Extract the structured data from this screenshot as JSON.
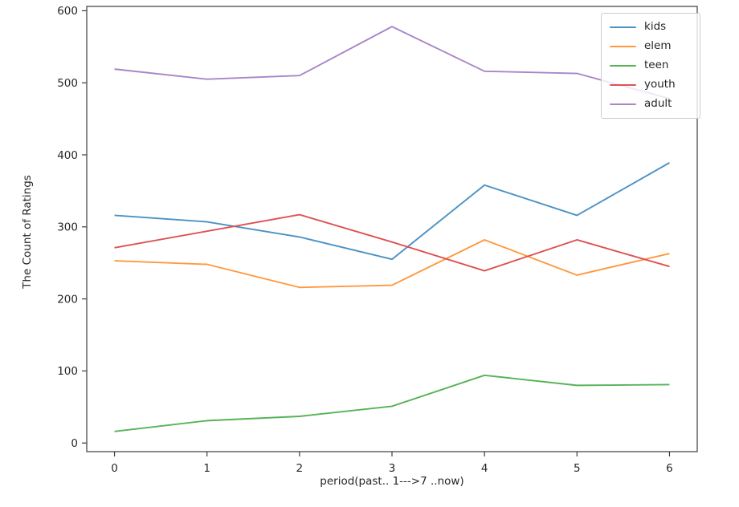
{
  "figure": {
    "background": "#ffffff",
    "text_color": "#262626",
    "axis_color": "#3c3c3c",
    "legend_border_color": "#cccccc"
  },
  "chart_data": {
    "type": "line",
    "title": "",
    "xlabel": "period(past.. 1--->7 ..now)",
    "ylabel": "The Count of Ratings",
    "x": [
      0,
      1,
      2,
      3,
      4,
      5,
      6
    ],
    "x_tick_labels": [
      "0",
      "1",
      "2",
      "3",
      "4",
      "5",
      "6"
    ],
    "y_ticks": [
      0,
      100,
      200,
      300,
      400,
      500,
      600
    ],
    "xlim": [
      -0.3,
      6.3
    ],
    "ylim": [
      -12,
      606
    ],
    "grid": false,
    "legend_position": "upper right",
    "legend_entries": [
      "kids",
      "elem",
      "teen",
      "youth",
      "adult"
    ],
    "series": [
      {
        "name": "kids",
        "color": "#4c92c3",
        "values": [
          316,
          307,
          286,
          255,
          358,
          316,
          389
        ]
      },
      {
        "name": "elem",
        "color": "#ff993e",
        "values": [
          253,
          248,
          216,
          219,
          282,
          233,
          263
        ]
      },
      {
        "name": "teen",
        "color": "#56b356",
        "values": [
          16,
          31,
          37,
          51,
          94,
          80,
          81
        ]
      },
      {
        "name": "youth",
        "color": "#de5253",
        "values": [
          271,
          294,
          317,
          279,
          239,
          282,
          245
        ]
      },
      {
        "name": "adult",
        "color": "#a985ca",
        "values": [
          519,
          505,
          510,
          578,
          516,
          513,
          478
        ]
      }
    ]
  }
}
